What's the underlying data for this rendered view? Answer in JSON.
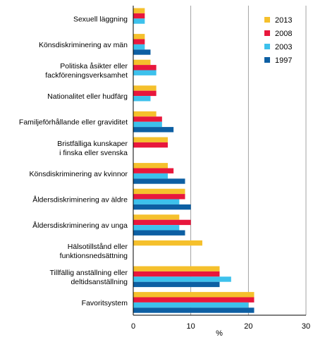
{
  "chart_data": {
    "type": "bar",
    "orientation": "horizontal",
    "categories": [
      [
        "Sexuell läggning"
      ],
      [
        "Könsdiskriminering av män"
      ],
      [
        "Politiska åsikter eller",
        "fackföreningsverksamhet"
      ],
      [
        "Nationalitet eller hudfärg"
      ],
      [
        "Familjeförhållande eller graviditet"
      ],
      [
        "Bristfälliga kunskaper",
        "i finska eller svenska"
      ],
      [
        "Könsdiskriminering av kvinnor"
      ],
      [
        "Åldersdiskriminering av äldre"
      ],
      [
        "Åldersdiskriminering av unga"
      ],
      [
        "Hälsotillstånd eller",
        "funktionsnedsättning"
      ],
      [
        "Tillfällig anställning eller",
        "deltidsanställning"
      ],
      [
        "Favoritsystem"
      ]
    ],
    "series": [
      {
        "name": "2013",
        "color": "#f5c02c",
        "values": [
          2,
          2,
          3,
          4,
          4,
          6,
          6,
          9,
          8,
          12,
          15,
          21
        ]
      },
      {
        "name": "2008",
        "color": "#e8173c",
        "values": [
          2,
          2,
          4,
          4,
          5,
          6,
          7,
          9,
          10,
          null,
          15,
          21
        ]
      },
      {
        "name": "2003",
        "color": "#3dc1ec",
        "values": [
          2,
          2,
          4,
          3,
          5,
          null,
          6,
          8,
          8,
          null,
          17,
          20
        ]
      },
      {
        "name": "1997",
        "color": "#0d5fa3",
        "values": [
          null,
          3,
          null,
          null,
          7,
          null,
          9,
          10,
          9,
          null,
          15,
          21
        ]
      }
    ],
    "xlim": [
      0,
      30
    ],
    "xticks": [
      0,
      10,
      20,
      30
    ],
    "xlabel": "%",
    "grid": true,
    "legend_position": "top-right"
  }
}
